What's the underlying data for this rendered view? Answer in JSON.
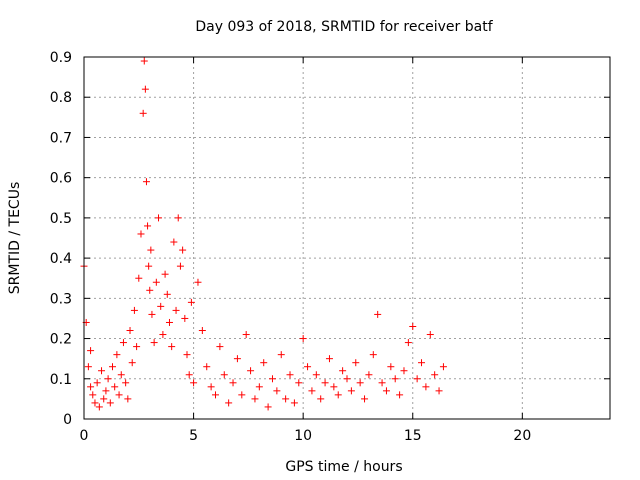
{
  "chart_data": {
    "type": "scatter",
    "title": "Day 093 of 2018, SRMTID for receiver batf",
    "xlabel": "GPS time / hours",
    "ylabel": "SRMTID / TECUs",
    "xlim": [
      0,
      24
    ],
    "ylim": [
      0,
      0.9
    ],
    "xticks": [
      0,
      5,
      10,
      15,
      20
    ],
    "xtick_labels": [
      "0",
      "5",
      "10",
      "15",
      "20"
    ],
    "yticks": [
      0,
      0.1,
      0.2,
      0.3,
      0.4,
      0.5,
      0.6,
      0.7,
      0.8,
      0.9
    ],
    "ytick_labels": [
      "0",
      "0.1",
      "0.2",
      "0.3",
      "0.4",
      "0.5",
      "0.6",
      "0.7",
      "0.8",
      "0.9"
    ],
    "grid": true,
    "marker": "+",
    "color": "#ff0000",
    "series": [
      {
        "name": "SRMTID",
        "x": [
          0.0,
          0.1,
          0.2,
          0.3,
          0.3,
          0.4,
          0.5,
          0.6,
          0.7,
          0.8,
          0.9,
          1.0,
          1.1,
          1.2,
          1.3,
          1.4,
          1.5,
          1.6,
          1.7,
          1.8,
          1.9,
          2.0,
          2.1,
          2.2,
          2.3,
          2.4,
          2.5,
          2.6,
          2.7,
          2.75,
          2.8,
          2.85,
          2.9,
          2.95,
          3.0,
          3.05,
          3.1,
          3.2,
          3.3,
          3.4,
          3.5,
          3.6,
          3.7,
          3.8,
          3.9,
          4.0,
          4.1,
          4.2,
          4.3,
          4.4,
          4.5,
          4.6,
          4.7,
          4.8,
          4.9,
          5.0,
          5.2,
          5.4,
          5.6,
          5.8,
          6.0,
          6.2,
          6.4,
          6.6,
          6.8,
          7.0,
          7.2,
          7.4,
          7.6,
          7.8,
          8.0,
          8.2,
          8.4,
          8.6,
          8.8,
          9.0,
          9.2,
          9.4,
          9.6,
          9.8,
          10.0,
          10.2,
          10.4,
          10.6,
          10.8,
          11.0,
          11.2,
          11.4,
          11.6,
          11.8,
          12.0,
          12.2,
          12.4,
          12.6,
          12.8,
          13.0,
          13.2,
          13.4,
          13.6,
          13.8,
          14.0,
          14.2,
          14.4,
          14.6,
          14.8,
          15.0,
          15.2,
          15.4,
          15.6,
          15.8,
          16.0,
          16.2,
          16.4
        ],
        "y": [
          0.38,
          0.24,
          0.13,
          0.08,
          0.17,
          0.06,
          0.04,
          0.09,
          0.03,
          0.12,
          0.05,
          0.07,
          0.1,
          0.04,
          0.13,
          0.08,
          0.16,
          0.06,
          0.11,
          0.19,
          0.09,
          0.05,
          0.22,
          0.14,
          0.27,
          0.18,
          0.35,
          0.46,
          0.76,
          0.89,
          0.82,
          0.59,
          0.48,
          0.38,
          0.32,
          0.42,
          0.26,
          0.19,
          0.34,
          0.5,
          0.28,
          0.21,
          0.36,
          0.31,
          0.24,
          0.18,
          0.44,
          0.27,
          0.5,
          0.38,
          0.42,
          0.25,
          0.16,
          0.11,
          0.29,
          0.09,
          0.34,
          0.22,
          0.13,
          0.08,
          0.06,
          0.18,
          0.11,
          0.04,
          0.09,
          0.15,
          0.06,
          0.21,
          0.12,
          0.05,
          0.08,
          0.14,
          0.03,
          0.1,
          0.07,
          0.16,
          0.05,
          0.11,
          0.04,
          0.09,
          0.2,
          0.13,
          0.07,
          0.11,
          0.05,
          0.09,
          0.15,
          0.08,
          0.06,
          0.12,
          0.1,
          0.07,
          0.14,
          0.09,
          0.05,
          0.11,
          0.16,
          0.26,
          0.09,
          0.07,
          0.13,
          0.1,
          0.06,
          0.12,
          0.19,
          0.23,
          0.1,
          0.14,
          0.08,
          0.21,
          0.11,
          0.07,
          0.13
        ]
      }
    ]
  }
}
